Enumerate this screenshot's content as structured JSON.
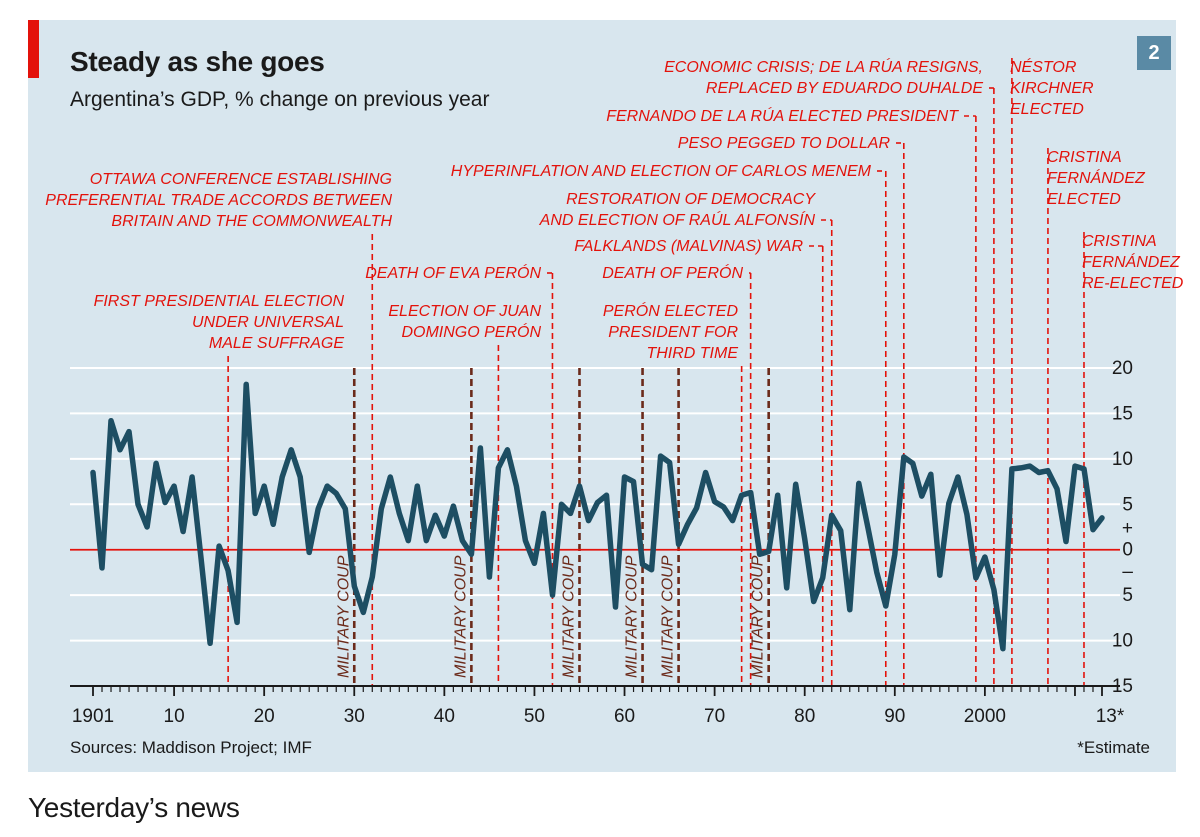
{
  "chart_data": {
    "type": "line",
    "title": "Steady as she goes",
    "subtitle": "Argentina’s GDP, % change on previous year",
    "chart_number": "2",
    "source": "Sources: Maddison Project; IMF",
    "footnote": "*Estimate",
    "xlabel": "",
    "ylabel": "",
    "xlim": [
      1900,
      2014
    ],
    "ylim": [
      -15,
      20
    ],
    "x_tick_labels": [
      {
        "year": 1901,
        "label": "1901"
      },
      {
        "year": 1910,
        "label": "10"
      },
      {
        "year": 1920,
        "label": "20"
      },
      {
        "year": 1930,
        "label": "30"
      },
      {
        "year": 1940,
        "label": "40"
      },
      {
        "year": 1950,
        "label": "50"
      },
      {
        "year": 1960,
        "label": "60"
      },
      {
        "year": 1970,
        "label": "70"
      },
      {
        "year": 1980,
        "label": "80"
      },
      {
        "year": 1990,
        "label": "90"
      },
      {
        "year": 2000,
        "label": "2000"
      },
      {
        "year": 2013,
        "label": "13*"
      }
    ],
    "y_tick_labels": [
      {
        "value": 20,
        "label": "20"
      },
      {
        "value": 15,
        "label": "15"
      },
      {
        "value": 10,
        "label": "10"
      },
      {
        "value": 5,
        "label": "5"
      },
      {
        "value": 0,
        "label": "0"
      },
      {
        "value": -5,
        "label": "5"
      },
      {
        "value": -10,
        "label": "10"
      },
      {
        "value": -15,
        "label": "15"
      }
    ],
    "sign_labels": {
      "plus": "+",
      "minus": "–"
    },
    "series": [
      {
        "name": "GDP % change",
        "color": "#1d4e63",
        "x": [
          1901,
          1902,
          1903,
          1904,
          1905,
          1906,
          1907,
          1908,
          1909,
          1910,
          1911,
          1912,
          1913,
          1914,
          1915,
          1916,
          1917,
          1918,
          1919,
          1920,
          1921,
          1922,
          1923,
          1924,
          1925,
          1926,
          1927,
          1928,
          1929,
          1930,
          1931,
          1932,
          1933,
          1934,
          1935,
          1936,
          1937,
          1938,
          1939,
          1940,
          1941,
          1942,
          1943,
          1944,
          1945,
          1946,
          1947,
          1948,
          1949,
          1950,
          1951,
          1952,
          1953,
          1954,
          1955,
          1956,
          1957,
          1958,
          1959,
          1960,
          1961,
          1962,
          1963,
          1964,
          1965,
          1966,
          1967,
          1968,
          1969,
          1970,
          1971,
          1972,
          1973,
          1974,
          1975,
          1976,
          1977,
          1978,
          1979,
          1980,
          1981,
          1982,
          1983,
          1984,
          1985,
          1986,
          1987,
          1988,
          1989,
          1990,
          1991,
          1992,
          1993,
          1994,
          1995,
          1996,
          1997,
          1998,
          1999,
          2000,
          2001,
          2002,
          2003,
          2004,
          2005,
          2006,
          2007,
          2008,
          2009,
          2010,
          2011,
          2012,
          2013
        ],
        "values": [
          8.5,
          -2,
          14.2,
          11,
          13,
          5,
          2.5,
          9.5,
          5.2,
          7,
          2,
          8,
          -1,
          -10.3,
          0.4,
          -2.3,
          -8,
          18.2,
          4,
          7,
          2.8,
          8,
          11,
          8,
          -0.3,
          4.5,
          7,
          6.2,
          4.5,
          -4,
          -6.9,
          -3,
          4.5,
          8,
          4,
          1,
          7,
          1,
          3.8,
          1.5,
          4.8,
          1,
          -0.5,
          11.2,
          -3,
          9,
          11,
          7,
          1,
          -1.5,
          4,
          -5,
          5,
          4,
          7,
          3.2,
          5.2,
          6,
          -6.3,
          8,
          7.5,
          -1.6,
          -2.2,
          10.3,
          9.6,
          0.6,
          2.8,
          4.6,
          8.5,
          5.3,
          4.7,
          3.2,
          6,
          6.3,
          -0.5,
          -0.2,
          6,
          -4.2,
          7.2,
          1.2,
          -5.7,
          -3.1,
          3.8,
          2.1,
          -6.6,
          7.3,
          2.5,
          -2.5,
          -6.2,
          -0.5,
          10.2,
          9.5,
          5.9,
          8.3,
          -2.8,
          5.1,
          8,
          3.9,
          -3.1,
          -0.8,
          -4.4,
          -10.9,
          8.9,
          9,
          9.2,
          8.5,
          8.7,
          6.7,
          0.9,
          9.2,
          8.9,
          2.2,
          3.5
        ]
      }
    ],
    "military_coups": [
      {
        "year": 1930,
        "label": "MILITARY COUP"
      },
      {
        "year": 1943,
        "label": "MILITARY COUP"
      },
      {
        "year": 1955,
        "label": "MILITARY COUP"
      },
      {
        "year": 1962,
        "label": "MILITARY COUP"
      },
      {
        "year": 1966,
        "label": "MILITARY COUP"
      },
      {
        "year": 1976,
        "label": "MILITARY COUP"
      }
    ],
    "events": [
      {
        "year": 1916,
        "lines": [
          "FIRST PRESIDENTIAL ELECTION",
          "UNDER UNIVERSAL",
          "MALE SUFFRAGE"
        ]
      },
      {
        "year": 1932,
        "lines": [
          "OTTAWA CONFERENCE ESTABLISHING",
          "PREFERENTIAL TRADE ACCORDS BETWEEN",
          "BRITAIN AND THE COMMONWEALTH"
        ]
      },
      {
        "year": 1946,
        "lines": [
          "ELECTION OF JUAN",
          "DOMINGO PERÓN"
        ]
      },
      {
        "year": 1952,
        "lines": [
          "DEATH OF EVA PERÓN"
        ]
      },
      {
        "year": 1973,
        "lines": [
          "PERÓN ELECTED",
          "PRESIDENT FOR",
          "THIRD TIME"
        ]
      },
      {
        "year": 1974,
        "lines": [
          "DEATH OF PERÓN"
        ]
      },
      {
        "year": 1982,
        "lines": [
          "FALKLANDS (MALVINAS) WAR"
        ]
      },
      {
        "year": 1983,
        "lines": [
          "RESTORATION OF DEMOCRACY",
          "AND ELECTION OF RAÚL ALFONSÍN"
        ]
      },
      {
        "year": 1989,
        "lines": [
          "HYPERINFLATION AND ELECTION OF CARLOS MENEM"
        ]
      },
      {
        "year": 1991,
        "lines": [
          "PESO PEGGED TO DOLLAR"
        ]
      },
      {
        "year": 1999,
        "lines": [
          "FERNANDO DE LA RÚA ELECTED PRESIDENT"
        ]
      },
      {
        "year": 2001,
        "lines": [
          "ECONOMIC CRISIS; DE LA RÚA RESIGNS,",
          "REPLACED BY EDUARDO DUHALDE"
        ]
      },
      {
        "year": 2003,
        "lines": [
          "NÉSTOR",
          "KIRCHNER",
          "ELECTED"
        ]
      },
      {
        "year": 2007,
        "lines": [
          "CRISTINA",
          "FERNÁNDEZ",
          "ELECTED"
        ]
      },
      {
        "year": 2011,
        "lines": [
          "CRISTINA",
          "FERNÁNDEZ",
          "RE-ELECTED"
        ]
      }
    ]
  },
  "colors": {
    "background": "#d8e6ee",
    "accent_red": "#e3120b",
    "line": "#1d4e63",
    "coup_line": "#6b2a1a",
    "grid": "#ffffff"
  },
  "subheading": "Yesterday’s news"
}
